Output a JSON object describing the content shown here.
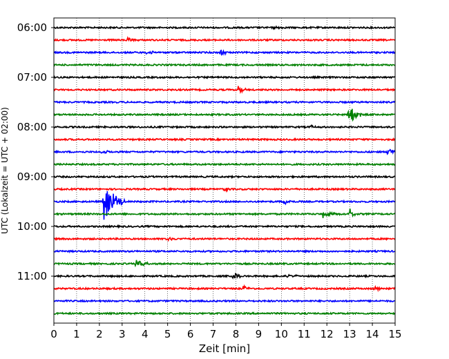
{
  "chart_data": {
    "type": "line",
    "title": "",
    "xlabel": "Zeit  [min]",
    "ylabel": "UTC (Lokalzeit = UTC + 02:00)",
    "x_range": [
      0,
      15
    ],
    "x_ticks": [
      "0",
      "1",
      "2",
      "3",
      "4",
      "5",
      "6",
      "7",
      "8",
      "9",
      "10",
      "11",
      "12",
      "13",
      "14",
      "15"
    ],
    "y_tick_labels": [
      "06:00",
      "07:00",
      "08:00",
      "09:00",
      "10:00",
      "11:00"
    ],
    "trace_interval_min": 15,
    "traces_per_tick": 4,
    "vertical_grid": true,
    "grid_style": "dotted",
    "trace_colors": [
      "#000000",
      "#ff0000",
      "#0000ff",
      "#008000"
    ],
    "traces": [
      {
        "start": "06:00",
        "color": "#000000",
        "events": [
          {
            "t": 9.7,
            "amp": 0.2,
            "dur": 0.4
          }
        ]
      },
      {
        "start": "06:15",
        "color": "#ff0000",
        "events": [
          {
            "t": 3.2,
            "amp": 0.18,
            "dur": 0.4
          }
        ]
      },
      {
        "start": "06:30",
        "color": "#0000ff",
        "events": [
          {
            "t": 4.1,
            "amp": 0.2,
            "dur": 0.5
          },
          {
            "t": 7.3,
            "amp": 0.25,
            "dur": 0.4
          }
        ]
      },
      {
        "start": "06:45",
        "color": "#008000",
        "events": []
      },
      {
        "start": "07:00",
        "color": "#000000",
        "events": []
      },
      {
        "start": "07:15",
        "color": "#ff0000",
        "events": [
          {
            "t": 8.1,
            "amp": 0.35,
            "dur": 0.4
          }
        ]
      },
      {
        "start": "07:30",
        "color": "#0000ff",
        "events": []
      },
      {
        "start": "07:45",
        "color": "#008000",
        "events": [
          {
            "t": 12.9,
            "amp": 1.2,
            "dur": 0.6
          }
        ]
      },
      {
        "start": "08:00",
        "color": "#000000",
        "events": [
          {
            "t": 11.3,
            "amp": 0.2,
            "dur": 0.3
          }
        ]
      },
      {
        "start": "08:15",
        "color": "#ff0000",
        "events": []
      },
      {
        "start": "08:30",
        "color": "#0000ff",
        "events": [
          {
            "t": 2.1,
            "amp": 0.2,
            "dur": 0.4
          },
          {
            "t": 14.7,
            "amp": 0.6,
            "dur": 0.3
          }
        ]
      },
      {
        "start": "08:45",
        "color": "#008000",
        "events": []
      },
      {
        "start": "09:00",
        "color": "#000000",
        "events": []
      },
      {
        "start": "09:15",
        "color": "#ff0000",
        "events": [
          {
            "t": 7.5,
            "amp": 0.15,
            "dur": 0.3
          }
        ]
      },
      {
        "start": "09:30",
        "color": "#0000ff",
        "events": [
          {
            "t": 2.2,
            "amp": 1.8,
            "dur": 0.9
          },
          {
            "t": 10.1,
            "amp": 0.25,
            "dur": 0.5
          }
        ]
      },
      {
        "start": "09:45",
        "color": "#008000",
        "events": [
          {
            "t": 11.8,
            "amp": 0.35,
            "dur": 0.8
          },
          {
            "t": 13.0,
            "amp": 0.5,
            "dur": 0.3
          }
        ]
      },
      {
        "start": "10:00",
        "color": "#000000",
        "events": []
      },
      {
        "start": "10:15",
        "color": "#ff0000",
        "events": [
          {
            "t": 4.9,
            "amp": 0.25,
            "dur": 0.6
          }
        ]
      },
      {
        "start": "10:30",
        "color": "#0000ff",
        "events": []
      },
      {
        "start": "10:45",
        "color": "#008000",
        "events": [
          {
            "t": 3.6,
            "amp": 0.35,
            "dur": 0.6
          }
        ]
      },
      {
        "start": "11:00",
        "color": "#000000",
        "events": [
          {
            "t": 7.9,
            "amp": 0.35,
            "dur": 0.4
          },
          {
            "t": 10.3,
            "amp": 0.2,
            "dur": 0.5
          }
        ]
      },
      {
        "start": "11:15",
        "color": "#ff0000",
        "events": [
          {
            "t": 8.3,
            "amp": 0.3,
            "dur": 0.4
          },
          {
            "t": 14.1,
            "amp": 0.25,
            "dur": 0.5
          }
        ]
      },
      {
        "start": "11:30",
        "color": "#0000ff",
        "events": []
      },
      {
        "start": "11:45",
        "color": "#008000",
        "events": []
      }
    ]
  }
}
